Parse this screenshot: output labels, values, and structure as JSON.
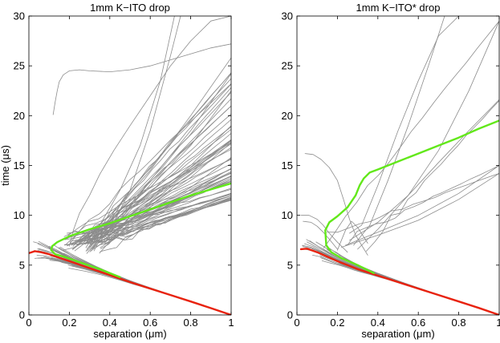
{
  "chart_data": [
    {
      "type": "line",
      "title": "1mm K−ITO drop",
      "xlabel": "separation (μm)",
      "ylabel": "time (μs)",
      "xlim": [
        0,
        1
      ],
      "ylim": [
        0,
        30
      ],
      "xticks": [
        "0",
        "0.2",
        "0.4",
        "0.6",
        "0.8",
        "1"
      ],
      "yticks": [
        "0",
        "5",
        "10",
        "15",
        "20",
        "25",
        "30"
      ],
      "series": [
        {
          "name": "red mean",
          "color": "#e8220e",
          "x": [
            0.0,
            0.03,
            0.06,
            0.1,
            0.2,
            0.3,
            0.4,
            0.5,
            0.6,
            0.7,
            0.8,
            0.9,
            1.0
          ],
          "y": [
            6.2,
            6.4,
            6.3,
            6.1,
            5.4,
            4.7,
            4.0,
            3.3,
            2.65,
            2.0,
            1.35,
            0.68,
            0.0
          ]
        },
        {
          "name": "green mean",
          "color": "#62e81a",
          "x": [
            0.45,
            0.35,
            0.25,
            0.18,
            0.13,
            0.11,
            0.115,
            0.14,
            0.2,
            0.3,
            0.4,
            0.5,
            0.6,
            0.7,
            0.8,
            0.9,
            1.0
          ],
          "y": [
            3.8,
            4.6,
            5.3,
            5.8,
            6.1,
            6.5,
            6.9,
            7.3,
            7.9,
            8.6,
            9.2,
            9.9,
            10.6,
            11.3,
            12.0,
            12.6,
            13.2
          ]
        }
      ],
      "background_traces": {
        "color": "#8c8c8c",
        "description": "many individual gray trajectories",
        "lower_end": [
          0.2,
          0.3,
          0.33
        ],
        "upper_end": [
          11.5,
          12.3,
          13.1,
          14.2,
          15.5,
          16.3,
          17.8,
          19.0,
          20.7,
          23.0,
          25.2
        ],
        "excursions": [
          {
            "x": [
              0.2,
              0.22,
              0.25,
              0.3,
              0.35,
              0.42,
              0.5,
              0.6,
              0.7,
              0.8,
              0.9,
              1.0
            ],
            "y": [
              6.9,
              8.5,
              10.2,
              12.0,
              14.1,
              16.5,
              19.0,
              22.0,
              25.0,
              27.5,
              29.5,
              30.0
            ]
          },
          {
            "x": [
              0.12,
              0.13,
              0.14,
              0.15,
              0.17,
              0.2,
              0.25,
              0.3,
              0.4,
              0.5,
              0.6,
              0.7,
              0.8,
              0.9,
              1.0
            ],
            "y": [
              20.1,
              21.4,
              22.5,
              23.4,
              24.1,
              24.5,
              24.6,
              24.5,
              24.4,
              24.6,
              25.0,
              25.6,
              26.2,
              26.8,
              27.2
            ]
          },
          {
            "x": [
              0.32,
              0.4,
              0.5,
              0.6,
              0.7,
              0.75
            ],
            "y": [
              6.7,
              8.5,
              12.5,
              18.5,
              26.0,
              30.0
            ]
          },
          {
            "x": [
              0.28,
              0.35,
              0.45,
              0.55,
              0.65,
              0.72
            ],
            "y": [
              7.2,
              9.0,
              12.5,
              17.0,
              23.5,
              30.0
            ]
          },
          {
            "x": [
              0.25,
              0.4,
              0.6,
              0.8,
              1.0
            ],
            "y": [
              7.3,
              10.0,
              14.5,
              20.0,
              25.8
            ]
          },
          {
            "x": [
              0.24,
              0.4,
              0.6,
              0.8,
              1.0
            ],
            "y": [
              7.0,
              9.5,
              13.5,
              18.5,
              24.2
            ]
          },
          {
            "x": [
              0.23,
              0.4,
              0.6,
              0.8,
              1.0
            ],
            "y": [
              7.2,
              9.4,
              12.8,
              17.0,
              22.5
            ]
          },
          {
            "x": [
              0.21,
              0.4,
              0.6,
              0.8,
              1.0
            ],
            "y": [
              7.0,
              8.9,
              11.6,
              15.0,
              19.0
            ]
          },
          {
            "x": [
              0.2,
              0.4,
              0.6,
              0.8,
              1.0
            ],
            "y": [
              7.1,
              8.8,
              11.0,
              13.8,
              17.3
            ]
          },
          {
            "x": [
              0.19,
              0.4,
              0.6,
              0.8,
              1.0
            ],
            "y": [
              7.0,
              8.6,
              10.5,
              12.8,
              15.8
            ]
          }
        ]
      }
    },
    {
      "type": "line",
      "title": "1mm K−ITO* drop",
      "xlabel": "separation (μm)",
      "ylabel": "",
      "xlim": [
        0,
        1
      ],
      "ylim": [
        0,
        30
      ],
      "xticks": [
        "0",
        "0.2",
        "0.4",
        "0.6",
        "0.8",
        "1"
      ],
      "yticks": [
        "0",
        "5",
        "10",
        "15",
        "20",
        "25",
        "30"
      ],
      "series": [
        {
          "name": "red mean",
          "color": "#e8220e",
          "x": [
            0.02,
            0.05,
            0.1,
            0.2,
            0.3,
            0.4,
            0.5,
            0.6,
            0.7,
            0.8,
            0.9,
            1.0
          ],
          "y": [
            6.6,
            6.65,
            6.3,
            5.4,
            4.6,
            3.95,
            3.3,
            2.65,
            2.0,
            1.35,
            0.7,
            0.0
          ]
        },
        {
          "name": "green mean",
          "color": "#62e81a",
          "x": [
            0.38,
            0.3,
            0.22,
            0.17,
            0.145,
            0.14,
            0.16,
            0.2,
            0.25,
            0.29,
            0.31,
            0.33,
            0.36,
            0.4,
            0.5,
            0.6,
            0.7,
            0.8,
            0.9,
            1.0
          ],
          "y": [
            4.2,
            5.0,
            5.7,
            6.3,
            7.0,
            8.5,
            9.3,
            9.9,
            10.8,
            12.0,
            13.0,
            13.7,
            14.3,
            14.6,
            15.4,
            16.2,
            17.0,
            17.8,
            18.7,
            19.5
          ]
        }
      ],
      "background_traces": {
        "color": "#8c8c8c",
        "description": "fewer individual gray trajectories",
        "lower_end": [
          0.16,
          0.24,
          0.32
        ],
        "upper_end": [
          14.2,
          15.0,
          21.5,
          29.5
        ],
        "excursions": [
          {
            "x": [
              0.04,
              0.08,
              0.12,
              0.16,
              0.2,
              0.23,
              0.26,
              0.29,
              0.32,
              0.35
            ],
            "y": [
              16.2,
              16.1,
              15.6,
              14.8,
              13.5,
              11.6,
              9.6,
              8.0,
              7.0,
              6.0
            ]
          },
          {
            "x": [
              0.26,
              0.32,
              0.4,
              0.5,
              0.6,
              0.7,
              0.8
            ],
            "y": [
              8.2,
              9.0,
              13.0,
              18.5,
              23.5,
              28.0,
              30.0
            ]
          },
          {
            "x": [
              0.28,
              0.36,
              0.45,
              0.55,
              0.65,
              0.73
            ],
            "y": [
              7.0,
              9.0,
              13.5,
              19.0,
              25.0,
              30.0
            ]
          },
          {
            "x": [
              0.3,
              0.4,
              0.55,
              0.7,
              0.85,
              1.0
            ],
            "y": [
              6.6,
              8.6,
              12.0,
              16.5,
              22.5,
              29.5
            ]
          },
          {
            "x": [
              0.26,
              0.4,
              0.55,
              0.7,
              0.85,
              1.0
            ],
            "y": [
              7.5,
              9.3,
              12.0,
              15.3,
              18.5,
              21.6
            ]
          },
          {
            "x": [
              0.24,
              0.4,
              0.6,
              0.8,
              1.0
            ],
            "y": [
              7.0,
              8.3,
              10.0,
              12.2,
              15.0
            ]
          },
          {
            "x": [
              0.22,
              0.4,
              0.6,
              0.8,
              1.0
            ],
            "y": [
              6.8,
              8.0,
              9.5,
              11.6,
              14.2
            ]
          },
          {
            "x": [
              0.2,
              0.22,
              0.24,
              0.26,
              0.27,
              0.3,
              0.35
            ],
            "y": [
              6.5,
              7.5,
              8.5,
              9.1,
              9.4,
              8.8,
              7.2
            ]
          },
          {
            "x": [
              0.02,
              0.06,
              0.1,
              0.13,
              0.16,
              0.2,
              0.25
            ],
            "y": [
              10.0,
              10.0,
              9.6,
              9.0,
              8.2,
              7.3,
              6.3
            ]
          },
          {
            "x": [
              0.03,
              0.07,
              0.1,
              0.13,
              0.16,
              0.2
            ],
            "y": [
              9.4,
              9.3,
              8.9,
              8.3,
              7.6,
              6.6
            ]
          }
        ]
      }
    }
  ]
}
